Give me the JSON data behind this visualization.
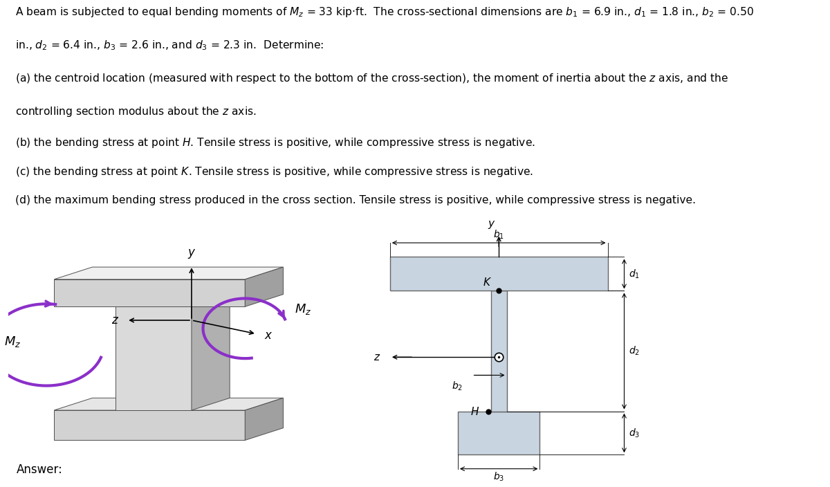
{
  "bg_color": "#ffffff",
  "text_color": "#000000",
  "moment_arrow_color": "#8B2FC9",
  "cross_fill": "#c8d4e0",
  "cross_edge": "#777777",
  "beam_front": "#d0d0d0",
  "beam_top": "#e8e8e8",
  "beam_side": "#a8a8a8",
  "beam_dark": "#888888"
}
